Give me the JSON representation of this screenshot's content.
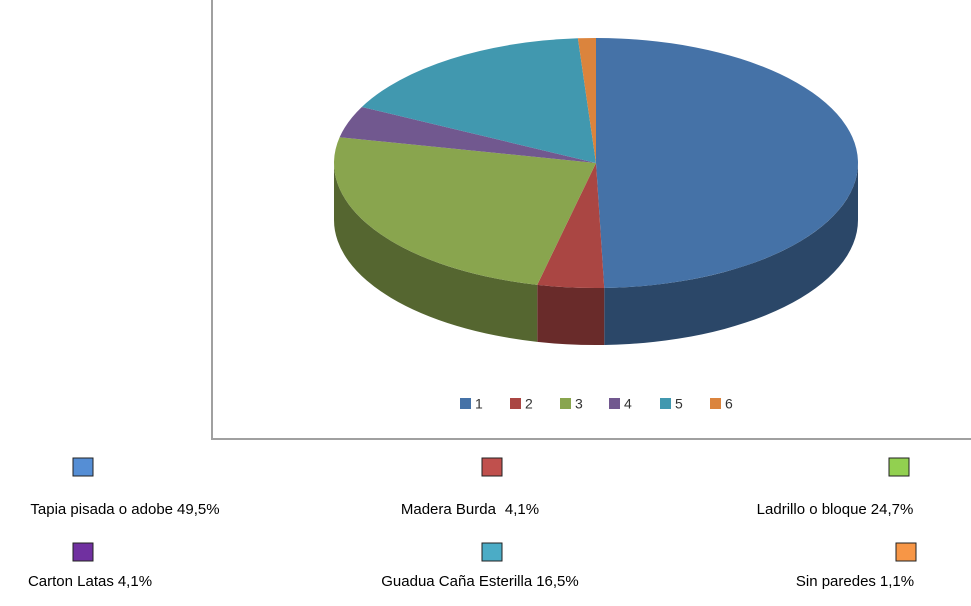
{
  "chart_data": {
    "type": "pie",
    "categories": [
      "1",
      "2",
      "3",
      "4",
      "5",
      "6"
    ],
    "values": [
      49.5,
      4.1,
      24.7,
      4.1,
      16.5,
      1.1
    ],
    "colors": [
      "#4572a7",
      "#aa4643",
      "#89a54e",
      "#71588f",
      "#4198af",
      "#db843d"
    ],
    "key_labels": [
      "Tapia pisada o adobe",
      "Madera Burda",
      "Ladrillo o bloque",
      "Carton Latas",
      "Guadua Caña Esterilla",
      "Sin paredes"
    ],
    "value_labels": [
      "49,5%",
      "4,1%",
      "24,7%",
      "4,1%",
      "16,5%",
      "1,1%"
    ],
    "key_colors": [
      "#558ed5",
      "#c0504d",
      "#92d050",
      "#7030a0",
      "#4bacc6",
      "#f79646"
    ]
  }
}
